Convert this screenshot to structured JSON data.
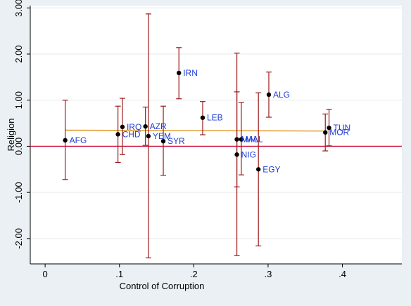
{
  "chart_data": {
    "type": "scatter",
    "title": "",
    "xlabel": "Control of Corruption",
    "ylabel": "Religion",
    "xlim": [
      -0.02,
      0.48
    ],
    "ylim": [
      -2.55,
      3.05
    ],
    "xticks": [
      0,
      0.1,
      0.2,
      0.3,
      0.4
    ],
    "xtick_labels": [
      "0",
      ".1",
      ".2",
      ".3",
      ".4"
    ],
    "yticks": [
      -2,
      -1,
      0,
      1,
      2,
      3
    ],
    "ytick_labels": [
      "-2.00",
      "-1.00",
      "0.00",
      "1.00",
      "2.00",
      "3.00"
    ],
    "grid": "horizontal",
    "reference_line": {
      "y": 0,
      "color": "#c8173c"
    },
    "fit_line": {
      "x": [
        0.027,
        0.38
      ],
      "y": [
        0.35,
        0.33
      ],
      "color": "#e0901a"
    },
    "error_bar_color": "#9a1a1a",
    "marker_color": "#000000",
    "label_color": "#1f3fd6",
    "points": [
      {
        "label": "AFG",
        "x": 0.027,
        "y": 0.13,
        "lo": -0.72,
        "hi": 1.0
      },
      {
        "label": "IRQ",
        "x": 0.104,
        "y": 0.42,
        "lo": -0.18,
        "hi": 1.04
      },
      {
        "label": "CHD",
        "x": 0.098,
        "y": 0.26,
        "lo": -0.35,
        "hi": 0.87
      },
      {
        "label": "AZR",
        "x": 0.135,
        "y": 0.43,
        "lo": 0.02,
        "hi": 0.85
      },
      {
        "label": "YEM",
        "x": 0.139,
        "y": 0.22,
        "lo": -2.42,
        "hi": 2.87
      },
      {
        "label": "SYR",
        "x": 0.159,
        "y": 0.11,
        "lo": -0.63,
        "hi": 0.87
      },
      {
        "label": "IRN",
        "x": 0.18,
        "y": 1.59,
        "lo": 1.03,
        "hi": 2.14
      },
      {
        "label": "LEB",
        "x": 0.212,
        "y": 0.62,
        "lo": 0.25,
        "hi": 0.97
      },
      {
        "label": "MAL",
        "x": 0.258,
        "y": 0.15,
        "lo": -2.37,
        "hi": 2.02
      },
      {
        "label": "NIG",
        "x": 0.258,
        "y": -0.18,
        "lo": -0.88,
        "hi": 1.18
      },
      {
        "label": "MAL",
        "x": 0.264,
        "y": 0.15,
        "lo": -0.62,
        "hi": 0.95
      },
      {
        "label": "EGY",
        "x": 0.287,
        "y": -0.5,
        "lo": -2.16,
        "hi": 1.16
      },
      {
        "label": "ALG",
        "x": 0.301,
        "y": 1.12,
        "lo": 0.63,
        "hi": 1.61
      },
      {
        "label": "MOR",
        "x": 0.377,
        "y": 0.3,
        "lo": -0.1,
        "hi": 0.7
      },
      {
        "label": "TUN",
        "x": 0.382,
        "y": 0.4,
        "lo": 0.01,
        "hi": 0.8
      }
    ]
  }
}
